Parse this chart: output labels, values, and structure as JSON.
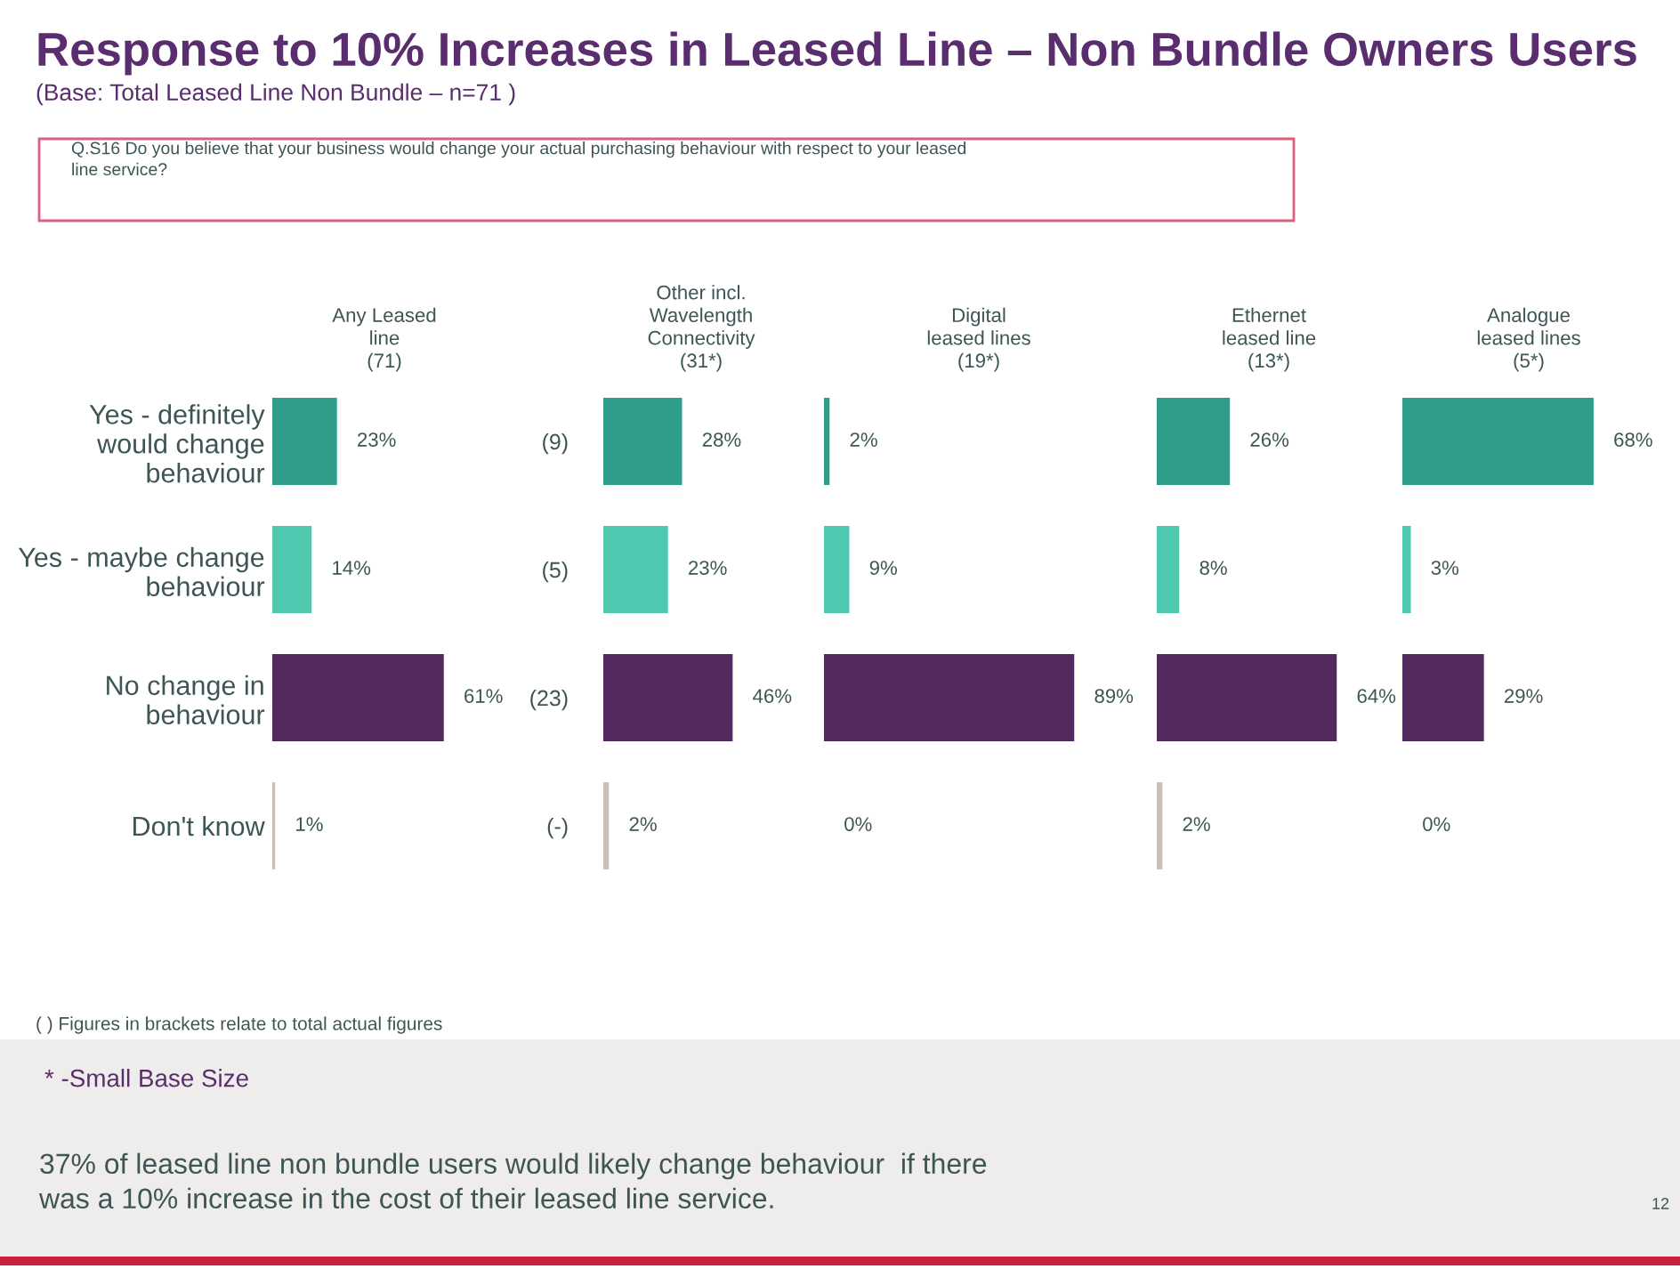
{
  "chart_data": [
    {
      "type": "other",
      "title": "Response to 10% Increases in Leased Line – Non Bundle Owners Users",
      "subtitle": "(Base: Total Leased Line Non Bundle – n=71 )",
      "annotations": [
        "Q.S16 Do you believe that your business would change your actual purchasing behaviour with respect to your leased\nline service?",
        "( ) Figures in brackets relate to total actual figures",
        "* -Small Base Size",
        "37% of leased line non bundle users would likely change behaviour  if there\nwas a 10% increase in the cost of their leased line service.",
        "12"
      ]
    },
    {
      "type": "bar",
      "orientation": "horizontal",
      "title": "Any Leased\nline\n(71)",
      "categories": [
        "Yes - definitely\nwould change\nbehaviour",
        "Yes - maybe change\nbehaviour",
        "No change in\nbehaviour",
        "Don't know"
      ],
      "values": [
        23,
        14,
        61,
        1
      ],
      "value_labels": [
        "23%",
        "14%",
        "61%",
        "1%"
      ],
      "colors": [
        "#2e9e8a",
        "#4ec9b0",
        "#532a5e",
        "#c8c0b8"
      ],
      "tick_labels": "y"
    },
    {
      "type": "bar",
      "orientation": "horizontal",
      "title": "Other incl.\nWavelength\nConnectivity\n(31*)",
      "categories": [
        "(9)",
        "(5)",
        "(23)",
        "(-)"
      ],
      "values": [
        28,
        23,
        46,
        2
      ],
      "value_labels": [
        "28%",
        "23%",
        "46%",
        "2%"
      ],
      "colors": [
        "#2e9e8a",
        "#4ec9b0",
        "#532a5e",
        "#c8c0b8"
      ],
      "tick_labels": "y"
    },
    {
      "type": "bar",
      "orientation": "horizontal",
      "title": "Digital\nleased lines\n(19*)",
      "categories": [
        null,
        null,
        null,
        null
      ],
      "values": [
        2,
        9,
        89,
        0
      ],
      "value_labels": [
        "2%",
        "9%",
        "89%",
        "0%"
      ],
      "colors": [
        "#2e9e8a",
        "#4ec9b0",
        "#532a5e",
        "#c8c0b8"
      ],
      "tick_labels": false
    },
    {
      "type": "bar",
      "orientation": "horizontal",
      "title": "Ethernet\nleased line\n(13*)",
      "categories": [
        null,
        null,
        null,
        null
      ],
      "values": [
        26,
        8,
        64,
        2
      ],
      "value_labels": [
        "26%",
        "8%",
        "64%",
        "2%"
      ],
      "colors": [
        "#2e9e8a",
        "#4ec9b0",
        "#532a5e",
        "#c8c0b8"
      ],
      "tick_labels": false
    },
    {
      "type": "bar",
      "orientation": "horizontal",
      "title": "Analogue\nleased lines\n(5*)",
      "categories": [
        null,
        null,
        null,
        null
      ],
      "values": [
        68,
        3,
        29,
        0
      ],
      "value_labels": [
        "68%",
        "3%",
        "29%",
        "0%"
      ],
      "colors": [
        "#2e9e8a",
        "#4ec9b0",
        "#532a5e",
        "#c8c0b8"
      ],
      "tick_labels": false
    }
  ]
}
